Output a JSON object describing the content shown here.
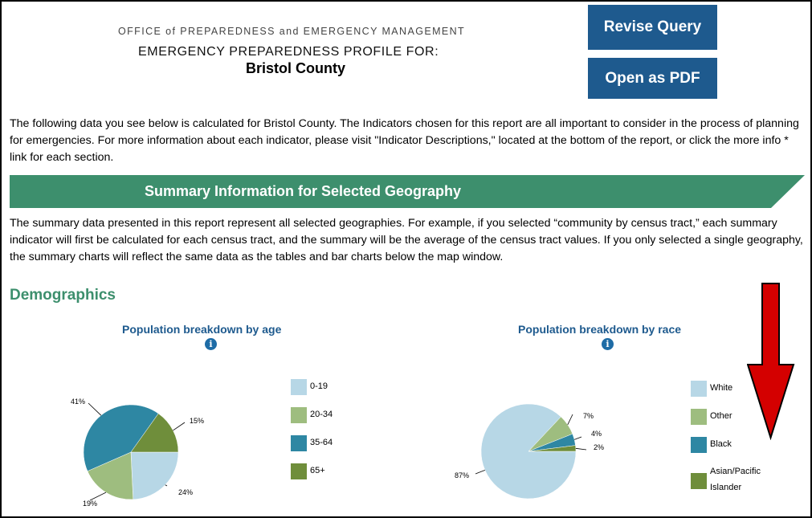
{
  "header": {
    "office": "OFFICE of PREPAREDNESS and EMERGENCY MANAGEMENT",
    "profile": "EMERGENCY PREPAREDNESS PROFILE FOR:",
    "county": "Bristol County"
  },
  "buttons": {
    "revise": "Revise Query",
    "pdf": "Open as PDF"
  },
  "intro": "The following data you see below is calculated for Bristol County. The Indicators chosen for this report are all important to consider in the process of planning for emergencies. For more information about each indicator, please visit \"Indicator Descriptions,\" located at the bottom of the report, or click the more info * link for each section.",
  "banner": {
    "title": "Summary Information for Selected Geography",
    "color": "#3d8f6d"
  },
  "summary": "The  summary data presented in this report represent all selected geographies. For example, if you selected “community by census tract,” each summary indicator will first be calculated for each census tract, and the summary will be the average of the census tract values.  If you only selected a single geography, the summary charts will reflect the same data as the tables and bar charts below the map window.",
  "section": {
    "title": "Demographics"
  },
  "info_icon": {
    "icon": "info-icon",
    "glyph": "i"
  },
  "arrow": {
    "icon": "red-down-arrow-icon",
    "color": "#d40000"
  },
  "chart_data": [
    {
      "type": "pie",
      "title": "Population breakdown by age",
      "categories": [
        "0-19",
        "20-34",
        "35-64",
        "65+"
      ],
      "values": [
        24,
        19,
        41,
        15
      ],
      "labels": [
        "24%",
        "19%",
        "41%",
        "15%"
      ],
      "colors": [
        "#b7d7e6",
        "#9ebd7f",
        "#2e87a3",
        "#6f8e3b"
      ],
      "legend": "right"
    },
    {
      "type": "pie",
      "title": "Population breakdown by race",
      "categories": [
        "White",
        "Other",
        "Black",
        "Asian/Pacific Islander"
      ],
      "values": [
        87,
        7,
        4,
        2
      ],
      "labels": [
        "87%",
        "7%",
        "4%",
        "2%"
      ],
      "colors": [
        "#b7d7e6",
        "#9ebd7f",
        "#2e87a3",
        "#6f8e3b"
      ],
      "legend": "right"
    }
  ]
}
